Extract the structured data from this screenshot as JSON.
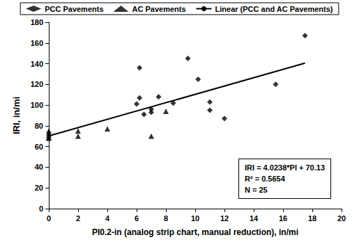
{
  "chart_data": {
    "type": "scatter",
    "x_label": "PI0.2-in (analog strip chart, manual reduction), in/mi",
    "y_label": "IRI, in/mi",
    "xlim": [
      0,
      20
    ],
    "xticks": [
      0,
      2,
      4,
      6,
      8,
      10,
      12,
      14,
      16,
      18,
      20
    ],
    "ylim": [
      0,
      180
    ],
    "yticks": [
      0,
      20,
      40,
      60,
      80,
      100,
      120,
      140,
      160,
      180
    ],
    "grid": false,
    "legend": "top",
    "annotations": [
      "IRI = 4.0238*PI + 70.13",
      "R² = 0.5654",
      "N = 25"
    ],
    "series": [
      {
        "name": "PCC Pavements",
        "type": "scatter",
        "marker": "diamond",
        "color": "#000000",
        "x": [
          6,
          6.2,
          6.2,
          6.5,
          7,
          7,
          7.5,
          8.5,
          9.5,
          10.2,
          11,
          11,
          12,
          15.5,
          17.5
        ],
        "values": [
          101,
          107,
          136,
          91,
          96,
          93,
          108,
          102,
          145,
          125,
          103,
          95,
          87,
          120,
          167
        ]
      },
      {
        "name": "AC Pavements",
        "type": "scatter",
        "marker": "triangle",
        "color": "#000000",
        "x": [
          0,
          0,
          0,
          0,
          0,
          2,
          2,
          4,
          7,
          8
        ],
        "values": [
          75,
          73,
          71,
          69,
          68,
          75,
          70,
          77,
          70,
          94
        ]
      },
      {
        "name": "Linear (PCC and AC Pavements)",
        "type": "line",
        "line_style": "solid",
        "color": "#000000",
        "x": [
          0,
          17.5
        ],
        "values": [
          70.13,
          140.55
        ]
      }
    ]
  }
}
